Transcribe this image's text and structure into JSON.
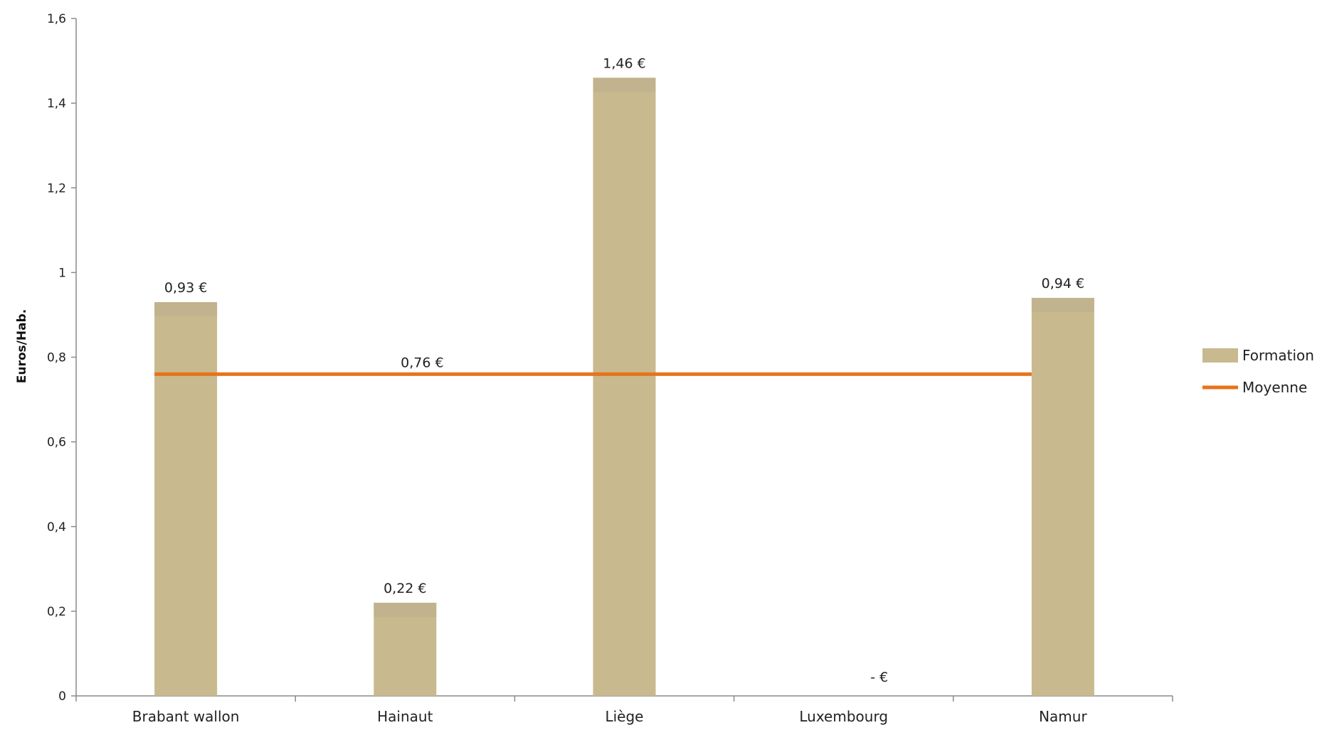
{
  "chart_data": {
    "type": "bar",
    "ylabel": "Euros/Hab.",
    "xlabel": "",
    "ylim": [
      0,
      1.6
    ],
    "y_ticks": [
      "0",
      "0,2",
      "0,4",
      "0,6",
      "0,8",
      "1",
      "1,2",
      "1,4",
      "1,6"
    ],
    "categories": [
      "Brabant wallon",
      "Hainaut",
      "Liège",
      "Luxembourg",
      "Namur"
    ],
    "series": [
      {
        "name": "Formation",
        "kind": "bar",
        "color": "#c8b98f",
        "values": [
          0.93,
          0.22,
          1.46,
          0,
          0.94
        ],
        "labels": [
          "0,93 €",
          "0,22 €",
          "1,46 €",
          "-   €",
          "0,94 €"
        ]
      },
      {
        "name": "Moyenne",
        "kind": "line",
        "color": "#e8731a",
        "values": [
          0.76,
          0.76,
          0.76,
          0.76,
          0.76
        ],
        "label": "0,76 €"
      }
    ],
    "legend": "right",
    "grid": false
  }
}
